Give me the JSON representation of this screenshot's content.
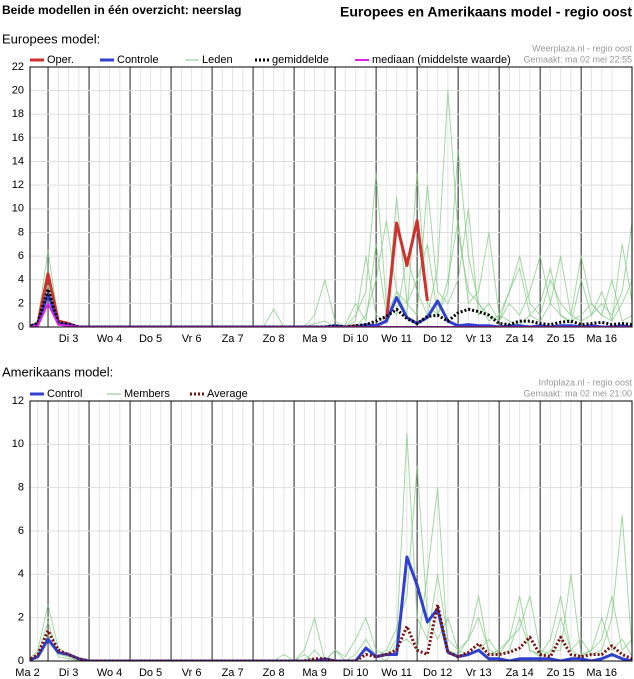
{
  "header": {
    "left": "Beide modellen in één overzicht: neerslag",
    "right": "Europees en Amerikaans model - regio oost"
  },
  "chart_data": [
    {
      "type": "line",
      "title": "Europees model:",
      "source": "Weerplaza.nl - regio oost",
      "made": "Gemaakt: ma 02 mei 22:55",
      "xlim": [
        0.56,
        15.24
      ],
      "ylim": [
        0,
        22
      ],
      "yticks": [
        0,
        2,
        4,
        6,
        8,
        10,
        12,
        14,
        16,
        18,
        20,
        22
      ],
      "grid": true,
      "xticks": [
        {
          "value": 1.5,
          "label": "Di 3"
        },
        {
          "value": 2.5,
          "label": "Wo 4"
        },
        {
          "value": 3.5,
          "label": "Do 5"
        },
        {
          "value": 4.5,
          "label": "Vr 6"
        },
        {
          "value": 5.5,
          "label": "Za 7"
        },
        {
          "value": 6.5,
          "label": "Zo 8"
        },
        {
          "value": 7.5,
          "label": "Ma 9"
        },
        {
          "value": 8.5,
          "label": "Di 10"
        },
        {
          "value": 9.5,
          "label": "Wo 11"
        },
        {
          "value": 10.5,
          "label": "Do 12"
        },
        {
          "value": 11.5,
          "label": "Vr 13"
        },
        {
          "value": 12.5,
          "label": "Za 14"
        },
        {
          "value": 13.5,
          "label": "Zo 15"
        },
        {
          "value": 14.5,
          "label": "Ma 16"
        }
      ],
      "x": [
        0.5,
        0.75,
        1,
        1.25,
        1.5,
        1.75,
        2,
        2.25,
        2.5,
        2.75,
        3,
        3.25,
        3.5,
        3.75,
        4,
        4.25,
        4.5,
        4.75,
        5,
        5.25,
        5.5,
        5.75,
        6,
        6.25,
        6.5,
        6.75,
        7,
        7.25,
        7.5,
        7.75,
        8,
        8.25,
        8.5,
        8.75,
        9,
        9.25,
        9.5,
        9.75,
        10,
        10.25,
        10.5,
        10.75,
        11,
        11.25,
        11.5,
        11.75,
        12,
        12.25,
        12.5,
        12.75,
        13,
        13.25,
        13.5,
        13.75,
        14,
        14.25,
        14.5,
        14.75,
        15,
        15.25
      ],
      "series": [
        {
          "name": "Oper.",
          "color": "#d03030",
          "width": 3,
          "values": [
            0,
            0.3,
            4.5,
            0.5,
            0.3,
            0,
            0,
            0,
            0,
            0,
            0,
            0,
            0,
            0,
            0,
            0,
            0,
            0,
            0,
            0,
            0,
            0,
            0,
            0,
            0,
            0,
            0,
            0,
            0,
            0,
            0,
            0,
            0.1,
            0,
            0.1,
            0.5,
            8.8,
            5.2,
            9,
            2.2,
            null,
            null,
            null,
            null,
            null,
            null,
            null,
            null,
            null,
            null,
            null,
            null,
            null,
            null,
            null,
            null,
            null,
            null,
            null,
            null
          ]
        },
        {
          "name": "Controle",
          "color": "#3040d0",
          "width": 3,
          "values": [
            0,
            0.2,
            2.8,
            0.3,
            0.2,
            0,
            0,
            0,
            0,
            0,
            0,
            0,
            0,
            0,
            0,
            0,
            0,
            0,
            0,
            0,
            0,
            0,
            0,
            0,
            0,
            0,
            0,
            0,
            0,
            0,
            0.1,
            0,
            0,
            0.2,
            0.1,
            0.5,
            2.5,
            0.8,
            0.3,
            0.8,
            2.2,
            0.5,
            0.1,
            0.2,
            0.1,
            0.1,
            0,
            0.1,
            0.1,
            0,
            0.1,
            0,
            0.1,
            0.1,
            0,
            0.1,
            0,
            0,
            0.1,
            0
          ]
        },
        {
          "name": "Leden",
          "color": "#7cc77c",
          "width": 1,
          "members": [
            [
              0,
              0.5,
              6.5,
              0.5,
              0.2,
              0,
              0,
              0,
              0,
              0,
              0,
              0,
              0,
              0,
              0,
              0,
              0,
              0,
              0,
              0,
              0,
              0,
              0,
              0,
              0,
              0,
              0,
              0,
              1,
              4,
              0.5,
              0,
              1,
              3,
              13,
              2,
              1,
              6,
              3,
              1,
              5,
              20,
              8,
              3,
              2,
              1,
              0.5,
              2,
              1,
              3,
              6,
              2,
              1,
              0.5,
              1,
              2,
              1,
              4,
              0.5,
              1
            ],
            [
              0,
              0.2,
              3.5,
              0.3,
              0.1,
              0,
              0,
              0,
              0,
              0,
              0,
              0,
              0,
              0,
              0,
              0,
              0,
              0,
              0,
              0,
              0,
              0,
              0,
              0,
              1.5,
              0,
              0,
              0,
              0,
              0,
              0,
              0,
              0.5,
              6,
              1,
              0.5,
              11,
              2,
              4,
              7,
              1,
              3,
              15,
              6,
              2,
              0.5,
              1,
              3,
              5,
              1,
              0.5,
              2,
              6,
              1,
              0.5,
              1,
              3,
              0.5,
              7,
              2
            ],
            [
              0,
              0.1,
              2,
              0.2,
              0,
              0,
              0,
              0,
              0,
              0,
              0,
              0,
              0,
              0,
              0,
              0,
              0,
              0,
              0,
              0,
              0,
              0,
              0,
              0,
              0,
              0,
              0,
              0,
              0.3,
              0.5,
              0,
              0,
              0,
              1,
              4,
              9,
              3,
              1,
              13,
              2,
              1,
              4,
              9,
              2,
              3,
              8,
              1,
              0.5,
              0.2,
              1,
              2,
              5,
              1,
              0.3,
              4,
              1,
              2,
              1,
              3,
              9
            ],
            [
              0,
              0.3,
              4,
              0.3,
              0.1,
              0,
              0,
              0,
              0,
              0,
              0,
              0,
              0,
              0,
              0,
              0,
              0,
              0,
              0,
              0,
              0,
              0,
              0,
              0,
              0,
              0,
              0,
              0,
              0,
              0,
              0,
              0.2,
              2,
              0.5,
              7,
              1,
              3,
              2,
              1,
              12,
              3,
              2,
              4,
              10,
              1,
              2,
              0.5,
              3,
              6,
              2,
              1,
              4,
              2,
              1,
              6,
              2,
              1,
              0.5,
              2,
              4
            ]
          ]
        },
        {
          "name": "gemiddelde",
          "color": "#000000",
          "width": 3,
          "style": "dotted",
          "values": [
            0,
            0.3,
            3.2,
            0.4,
            0.2,
            0,
            0,
            0,
            0,
            0,
            0,
            0,
            0,
            0,
            0,
            0,
            0,
            0,
            0,
            0,
            0,
            0,
            0,
            0,
            0,
            0,
            0,
            0,
            0,
            0,
            0.1,
            0,
            0.1,
            0.2,
            0.5,
            0.9,
            1.5,
            0.7,
            0.3,
            0.9,
            1,
            0.5,
            1.2,
            1.5,
            1.3,
            1,
            0.3,
            0.2,
            0.5,
            0.5,
            0.3,
            0.2,
            0.4,
            0.5,
            0.2,
            0.3,
            0.4,
            0.2,
            0.3,
            0.2
          ]
        },
        {
          "name": "mediaan (middelste waarde)",
          "color": "#e020e0",
          "width": 2,
          "values": [
            0,
            0.1,
            2,
            0.2,
            0.1,
            0,
            0,
            0,
            0,
            0,
            0,
            0,
            0,
            0,
            0,
            0,
            0,
            0,
            0,
            0,
            0,
            0,
            0,
            0,
            0,
            0,
            0,
            0,
            0,
            0,
            0,
            0,
            0,
            0,
            0,
            0,
            0,
            0,
            0,
            0,
            0,
            0,
            0,
            0,
            0,
            0,
            0,
            0,
            0,
            0,
            0,
            0,
            0,
            0,
            0,
            0,
            0,
            0,
            0,
            0
          ]
        }
      ]
    },
    {
      "type": "line",
      "title": "Amerikaans model:",
      "source": "Infoplaza.nl - regio oost",
      "made": "Gemaakt: ma 02 mei 21:00",
      "xlim": [
        0.56,
        15.24
      ],
      "ylim": [
        0,
        12
      ],
      "yticks": [
        0,
        2,
        4,
        6,
        8,
        10,
        12
      ],
      "grid": true,
      "xticks": [
        {
          "value": 0.5,
          "label": "Ma 2"
        },
        {
          "value": 1.5,
          "label": "Di 3"
        },
        {
          "value": 2.5,
          "label": "Wo 4"
        },
        {
          "value": 3.5,
          "label": "Do 5"
        },
        {
          "value": 4.5,
          "label": "Vr 6"
        },
        {
          "value": 5.5,
          "label": "Za 7"
        },
        {
          "value": 6.5,
          "label": "Zo 8"
        },
        {
          "value": 7.5,
          "label": "Ma 9"
        },
        {
          "value": 8.5,
          "label": "Di 10"
        },
        {
          "value": 9.5,
          "label": "Wo 11"
        },
        {
          "value": 10.5,
          "label": "Do 12"
        },
        {
          "value": 11.5,
          "label": "Vr 13"
        },
        {
          "value": 12.5,
          "label": "Za 14"
        },
        {
          "value": 13.5,
          "label": "Zo 15"
        },
        {
          "value": 14.5,
          "label": "Ma 16"
        }
      ],
      "x": [
        0.5,
        0.75,
        1,
        1.25,
        1.5,
        1.75,
        2,
        2.25,
        2.5,
        2.75,
        3,
        3.25,
        3.5,
        3.75,
        4,
        4.25,
        4.5,
        4.75,
        5,
        5.25,
        5.5,
        5.75,
        6,
        6.25,
        6.5,
        6.75,
        7,
        7.25,
        7.5,
        7.75,
        8,
        8.25,
        8.5,
        8.75,
        9,
        9.25,
        9.5,
        9.75,
        10,
        10.25,
        10.5,
        10.75,
        11,
        11.25,
        11.5,
        11.75,
        12,
        12.25,
        12.5,
        12.75,
        13,
        13.25,
        13.5,
        13.75,
        14,
        14.25,
        14.5,
        14.75,
        15,
        15.25
      ],
      "series": [
        {
          "name": "Control",
          "color": "#3040d0",
          "width": 3,
          "values": [
            0,
            0.2,
            1,
            0.4,
            0.3,
            0.1,
            0,
            0,
            0,
            0,
            0,
            0,
            0,
            0,
            0,
            0,
            0,
            0,
            0,
            0,
            0,
            0,
            0,
            0,
            0,
            0,
            0,
            0,
            0,
            0.1,
            0,
            0,
            0,
            0.6,
            0.2,
            0.3,
            0.3,
            4.8,
            3.5,
            1.8,
            2.4,
            0.4,
            0.2,
            0.3,
            0.5,
            0.1,
            0.1,
            0,
            0.1,
            0.1,
            0.1,
            0.1,
            0,
            0.1,
            0.1,
            0,
            0.1,
            0.3,
            0.1,
            0
          ]
        },
        {
          "name": "Members",
          "color": "#7cc77c",
          "width": 1,
          "members": [
            [
              0,
              0.5,
              2.6,
              0.6,
              0.3,
              0.1,
              0,
              0,
              0,
              0,
              0,
              0,
              0,
              0,
              0,
              0,
              0,
              0,
              0,
              0,
              0,
              0,
              0,
              0,
              0,
              0.3,
              0,
              0.5,
              2,
              0,
              0.5,
              0.2,
              1,
              2,
              0.5,
              0.3,
              1,
              10.5,
              2,
              1,
              4,
              1,
              0.5,
              1,
              2,
              0.5,
              0.3,
              1,
              1.5,
              3,
              0.5,
              0.3,
              2,
              0.5,
              1,
              0.3,
              0.5,
              2,
              6.7,
              0.3
            ],
            [
              0,
              0.3,
              1.8,
              0.3,
              0.2,
              0,
              0,
              0,
              0,
              0,
              0,
              0,
              0,
              0,
              0,
              0,
              0,
              0,
              0,
              0,
              0,
              0,
              0,
              0,
              0,
              0,
              0,
              0,
              0.5,
              0,
              0.5,
              0,
              0.3,
              1,
              0.2,
              0.5,
              1.5,
              3,
              9,
              2,
              1,
              2,
              0.5,
              0.3,
              0.5,
              1,
              0.3,
              0.5,
              2,
              0.5,
              0.3,
              1,
              3,
              0.5,
              0.2,
              0.5,
              2,
              0.5,
              1,
              0.2
            ],
            [
              0,
              0.2,
              1.2,
              0.2,
              0.1,
              0,
              0,
              0,
              0,
              0,
              0,
              0,
              0,
              0,
              0,
              0,
              0,
              0,
              0,
              0,
              0,
              0,
              0,
              0,
              0,
              0,
              0,
              0.3,
              0,
              0,
              0,
              0,
              0,
              0.5,
              0.3,
              0,
              0.8,
              1,
              0.5,
              4,
              8,
              0.5,
              0.3,
              1,
              3,
              0.3,
              0.5,
              1,
              3,
              0.5,
              0.2,
              0.5,
              0.5,
              4,
              0.3,
              0.5,
              1,
              3,
              0.5,
              1
            ]
          ]
        },
        {
          "name": "Average",
          "color": "#7a1010",
          "width": 3,
          "style": "dotted",
          "values": [
            0,
            0.3,
            1.4,
            0.5,
            0.3,
            0.1,
            0,
            0,
            0,
            0,
            0,
            0,
            0,
            0,
            0,
            0,
            0,
            0,
            0,
            0,
            0,
            0,
            0,
            0,
            0,
            0,
            0,
            0,
            0.1,
            0.1,
            0,
            0,
            0,
            0.3,
            0.2,
            0.3,
            0.5,
            1.6,
            0.5,
            0.3,
            2.6,
            0.4,
            0.2,
            0.4,
            0.8,
            0.3,
            0.3,
            0.4,
            0.6,
            1.1,
            0.3,
            0.2,
            1.1,
            0.3,
            0.2,
            0.3,
            0.3,
            0.7,
            0.3,
            0.1
          ]
        }
      ]
    }
  ]
}
